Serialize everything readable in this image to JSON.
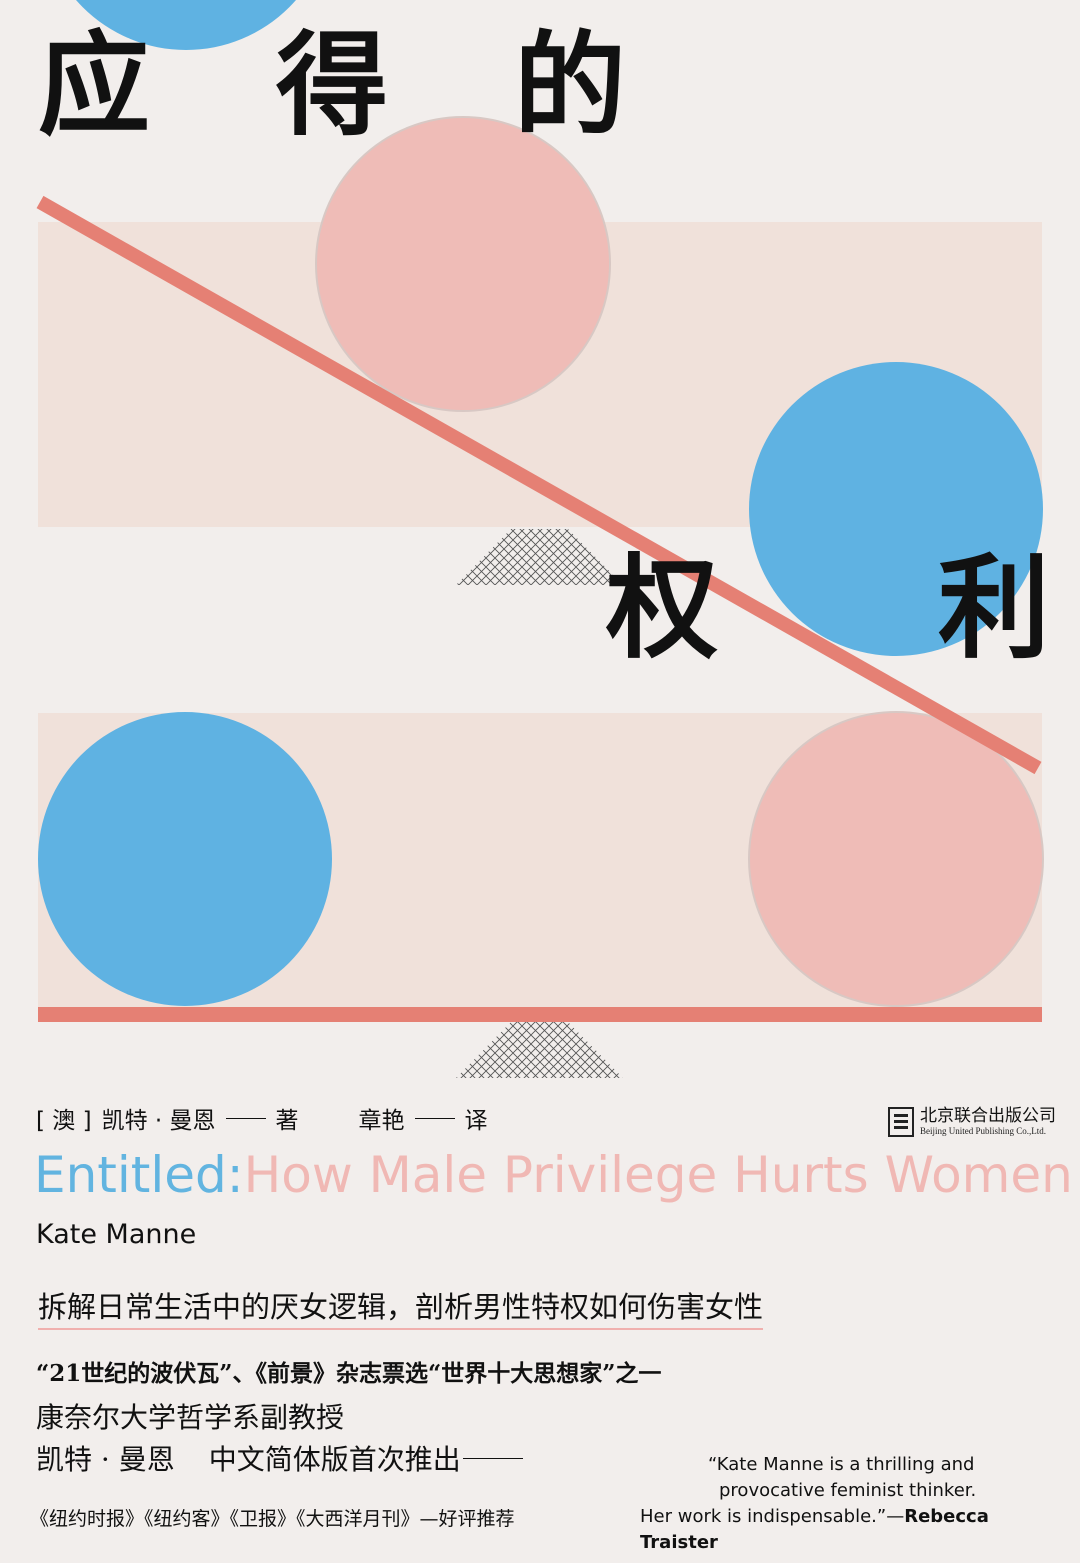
{
  "cover": {
    "title_cn_chars": [
      "应",
      "得",
      "的",
      "权",
      "利"
    ],
    "author_line": {
      "country": "[ 澳 ]",
      "author": "凯特 · 曼恩",
      "author_role": "著",
      "translator": "章艳",
      "translator_role": "译"
    },
    "publisher": {
      "name_cn": "北京联合出版公司",
      "name_en": "Beijing United Publishing Co.,Ltd."
    },
    "title_en": {
      "part1": "Entitled:",
      "part2": "How Male Privilege Hurts Women"
    },
    "author_en": "Kate Manne",
    "tagline": "拆解日常生活中的厌女逻辑，剖析男性特权如何伤害女性",
    "praise": {
      "line1": "“21世纪的波伏瓦”、《前景》杂志票选“世界十大思想家”之一",
      "line2": "康奈尔大学哲学系副教授",
      "line3_author": "凯特 · 曼恩",
      "line3_text": "中文简体版首次推出"
    },
    "reviews": "《纽约时报》《纽约客》《卫报》《大西洋月刊》—好评推荐",
    "quote": {
      "line1": "“Kate Manne is a thrilling and",
      "line2": "provocative feminist thinker.",
      "line3": "Her work is indispensable.”—",
      "source": "Rebecca Traister"
    },
    "colors": {
      "background": "#f2eeec",
      "blue": "#5fb2e2",
      "pink": "#efbcb7",
      "beam": "#e58074",
      "panel": "#f0e2dc"
    }
  }
}
